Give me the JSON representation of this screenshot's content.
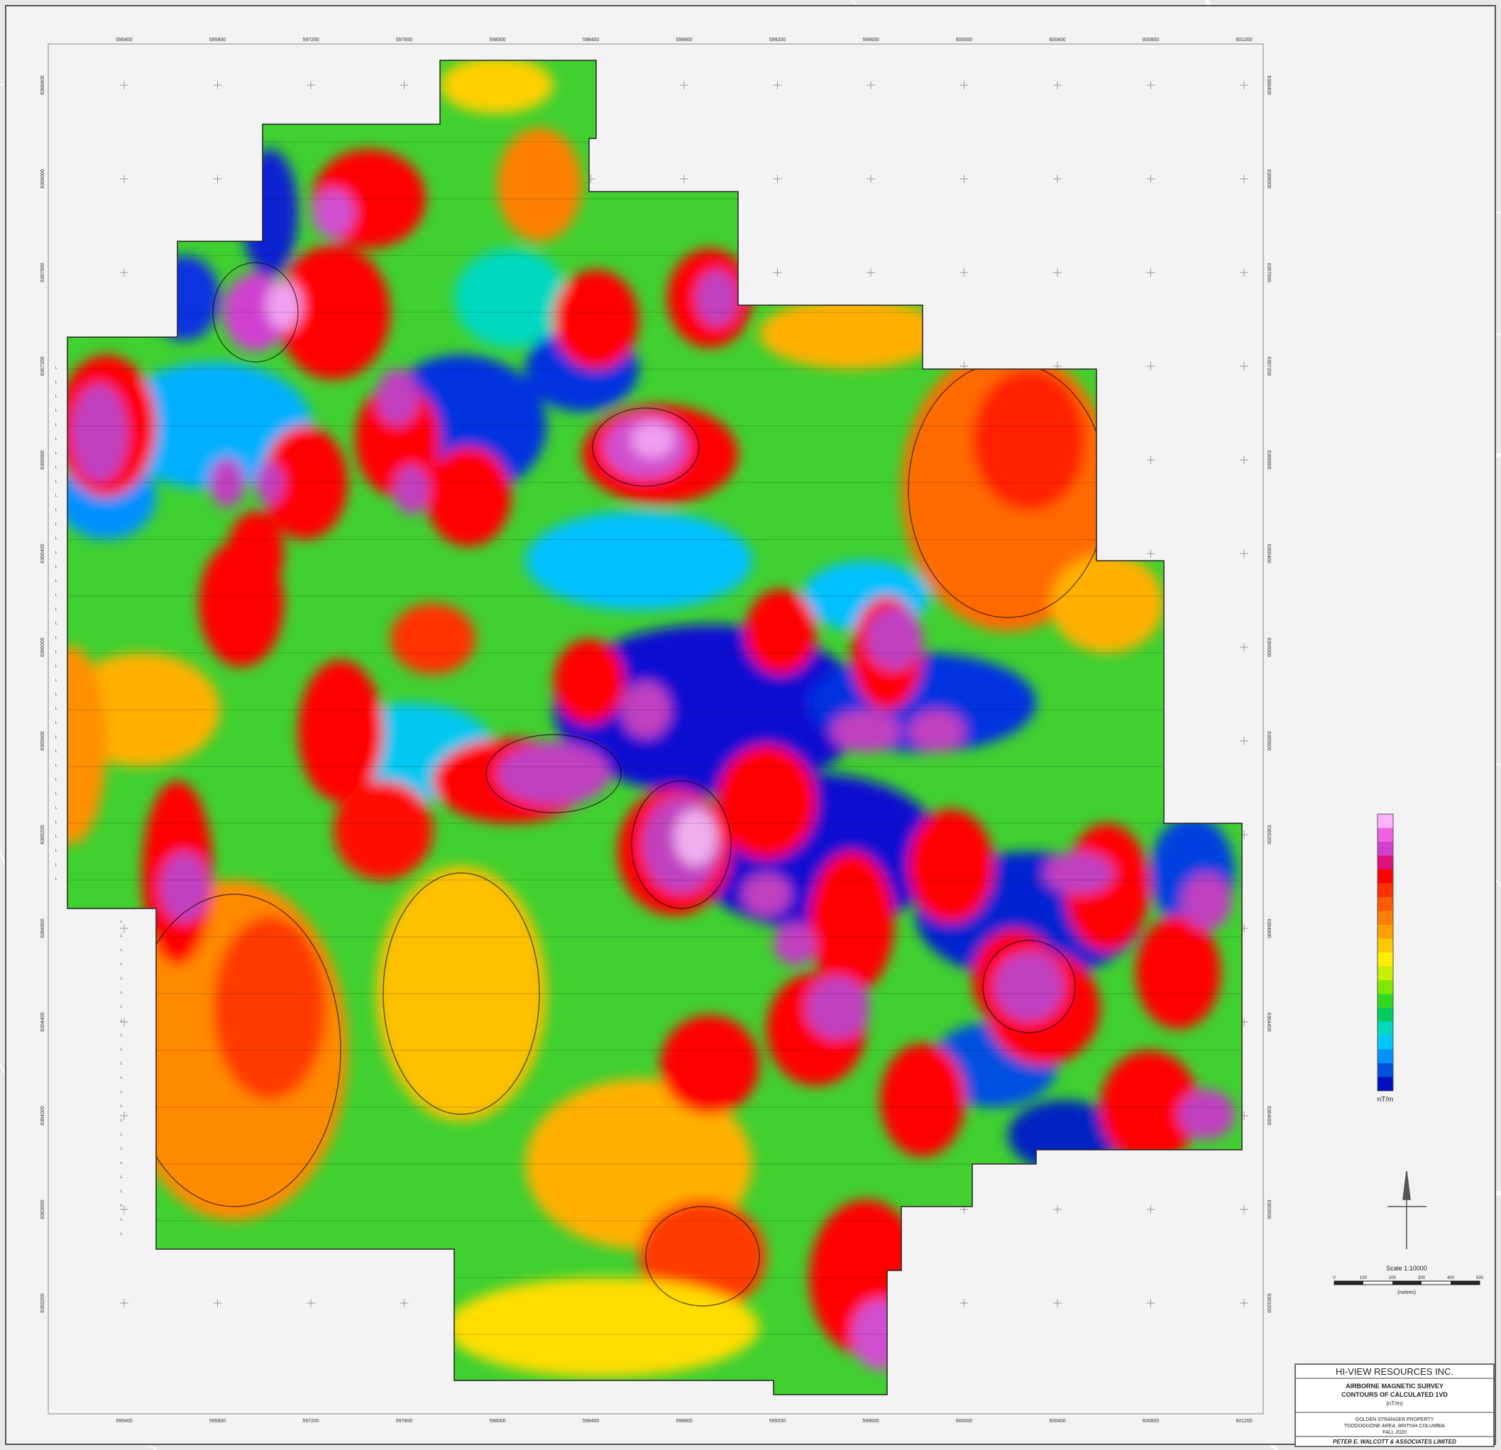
{
  "map": {
    "x_ticks": [
      "595400",
      "595800",
      "597200",
      "597600",
      "598000",
      "598400",
      "598800",
      "599200",
      "599600",
      "600000",
      "600400",
      "600800",
      "601200"
    ],
    "y_ticks": [
      "6368400",
      "6368000",
      "6367600",
      "6367200",
      "6366800",
      "6366400",
      "6366000",
      "6365600",
      "6365200",
      "6364800",
      "6364400",
      "6364000",
      "6363600",
      "6363200"
    ],
    "survey_line_label": "L",
    "legend_unit": "nT/m",
    "legend_colors": [
      "#ffb3ff",
      "#f060e0",
      "#d13fd1",
      "#e0107a",
      "#ff0000",
      "#ff3000",
      "#ff5a00",
      "#ff8000",
      "#ffa000",
      "#ffc800",
      "#ffee00",
      "#c8f000",
      "#80e800",
      "#30d820",
      "#00cc60",
      "#00d8c0",
      "#00c8ff",
      "#0090ff",
      "#0050e0",
      "#0010c0"
    ],
    "scale_text": "Scale 1:10000",
    "scale_ticks": [
      "0",
      "100",
      "200",
      "300",
      "400",
      "500"
    ],
    "scale_unit": "(metres)"
  },
  "title_block": {
    "company": "HI-VIEW RESOURCES INC.",
    "survey_line1": "AIRBORNE MAGNETIC SURVEY",
    "survey_line2": "CONTOURS OF CALCULATED 1VD",
    "survey_line3": "(nT/m)",
    "property_line1": "GOLDEN STRANGER PROPERTY",
    "property_line2": "TOODOGGONE AREA, BRITISH COLUMBIA",
    "property_line3": "FALL 2020",
    "contractor": "PETER E. WALCOTT & ASSOCIATES LIMITED"
  }
}
